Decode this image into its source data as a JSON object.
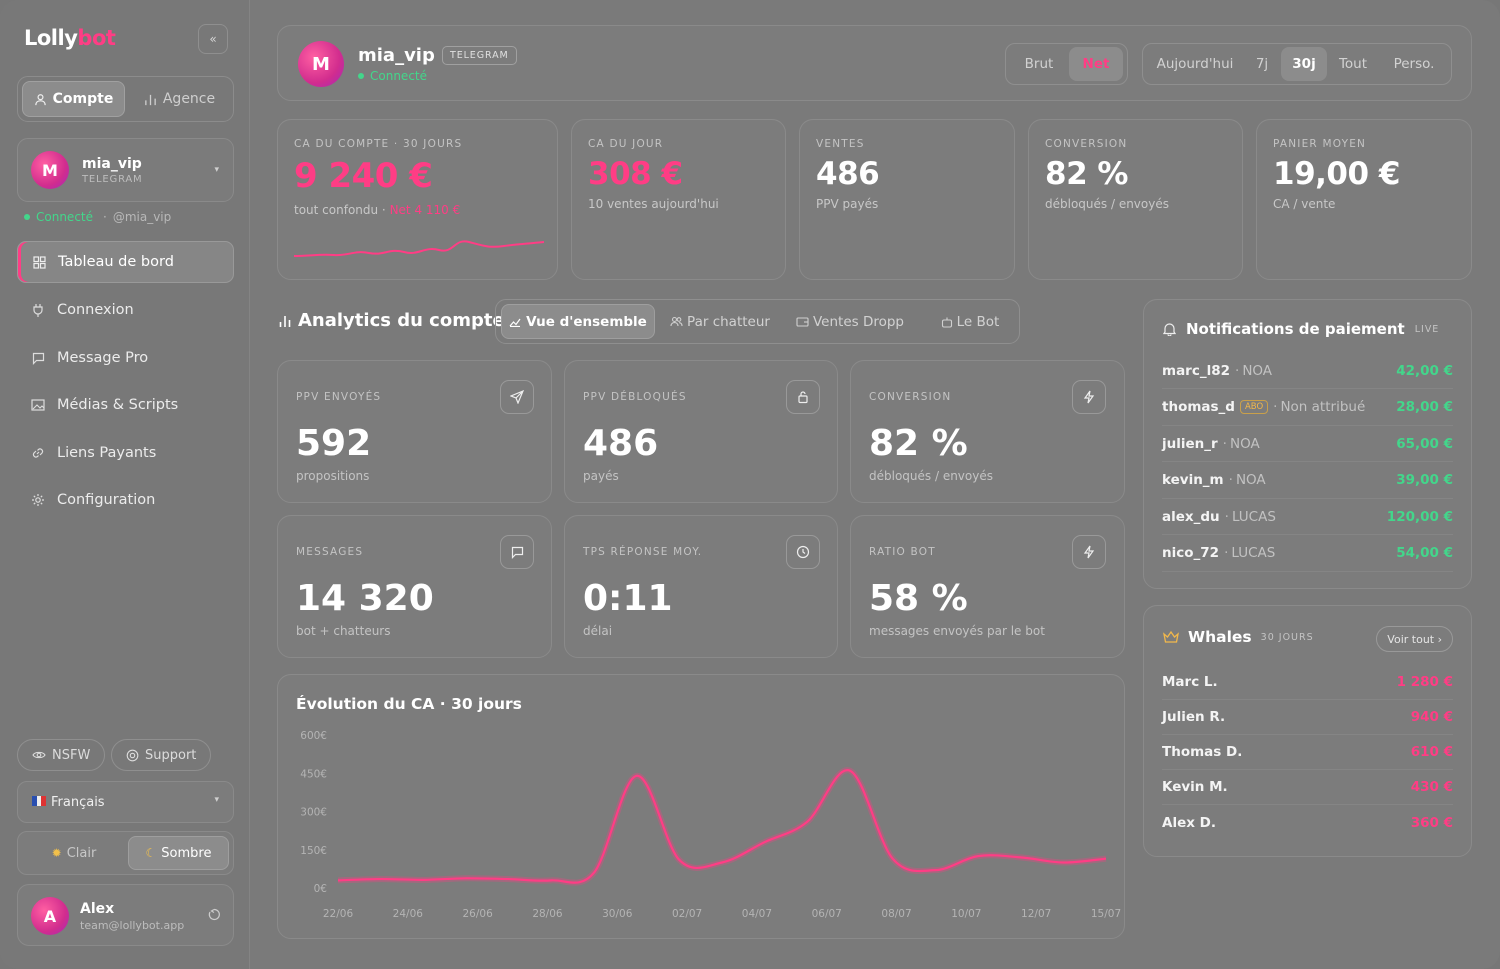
{
  "app": {
    "logo_part1": "Lolly",
    "logo_part2": "bot",
    "collapse_glyph": "«"
  },
  "sidebar": {
    "account_tab": "Compte",
    "agency_tab": "Agence",
    "profile": {
      "initial": "M",
      "name": "mia_vip",
      "platform": "TELEGRAM",
      "status": "Connecté",
      "handle": "@mia_vip"
    },
    "nav": [
      {
        "label": "Tableau de bord",
        "icon": "grid-icon"
      },
      {
        "label": "Connexion",
        "icon": "plug-icon"
      },
      {
        "label": "Message Pro",
        "icon": "message-icon"
      },
      {
        "label": "Médias & Scripts",
        "icon": "image-icon"
      },
      {
        "label": "Liens Payants",
        "icon": "link-icon"
      },
      {
        "label": "Configuration",
        "icon": "gear-icon"
      }
    ],
    "nsfw_label": "NSFW",
    "support_label": "Support",
    "language": "Français",
    "theme_light": "Clair",
    "theme_dark": "Sombre",
    "user": {
      "initial": "A",
      "name": "Alex",
      "email": "team@lollybot.app"
    }
  },
  "header": {
    "initial": "M",
    "name": "mia_vip",
    "badge": "TELEGRAM",
    "status": "Connecté",
    "mode_tabs": [
      "Brut",
      "Net"
    ],
    "period_tabs": [
      "Aujourd'hui",
      "7j",
      "30j",
      "Tout",
      "Perso."
    ]
  },
  "kpis": [
    {
      "label": "CA DU COMPTE · 30 JOURS",
      "value": "9 240 €",
      "sub": "tout confondu · ",
      "sub_extra": "Net 4 110 €"
    },
    {
      "label": "CA DU JOUR",
      "value": "308 €",
      "sub": "10 ventes aujourd'hui"
    },
    {
      "label": "VENTES",
      "value": "486",
      "sub": "PPV payés"
    },
    {
      "label": "CONVERSION",
      "value": "82 %",
      "sub": "débloqués / envoyés"
    },
    {
      "label": "PANIER MOYEN",
      "value": "19,00 €",
      "sub": "CA / vente"
    }
  ],
  "analytics": {
    "title": "Analytics du compte",
    "tabs": [
      "Vue d'ensemble",
      "Par chatteur",
      "Ventes Dropp",
      "Le Bot"
    ]
  },
  "stats": [
    {
      "label": "PPV ENVOYÉS",
      "value": "592",
      "sub": "propositions",
      "icon": "send-icon"
    },
    {
      "label": "PPV DÉBLOQUÉS",
      "value": "486",
      "sub": "payés",
      "icon": "lock-icon"
    },
    {
      "label": "CONVERSION",
      "value": "82 %",
      "sub": "débloqués / envoyés",
      "icon": "bolt-icon"
    },
    {
      "label": "MESSAGES",
      "value": "14 320",
      "sub": "bot + chatteurs",
      "icon": "chat-icon"
    },
    {
      "label": "TPS RÉPONSE MOY.",
      "value": "0:11",
      "sub": "délai",
      "icon": "clock-icon"
    },
    {
      "label": "RATIO BOT",
      "value": "58 %",
      "sub": "messages envoyés par le bot",
      "icon": "bolt-icon"
    }
  ],
  "notifications": {
    "title": "Notifications de paiement",
    "live": "LIVE",
    "items": [
      {
        "user": "marc_l82",
        "agent": "NOA",
        "amount": "42,00 €"
      },
      {
        "user": "thomas_d",
        "tag": "ABO",
        "agent": "Non attribué",
        "amount": "28,00 €"
      },
      {
        "user": "julien_r",
        "agent": "NOA",
        "amount": "65,00 €"
      },
      {
        "user": "kevin_m",
        "agent": "NOA",
        "amount": "39,00 €"
      },
      {
        "user": "alex_du",
        "agent": "LUCAS",
        "amount": "120,00 €"
      },
      {
        "user": "nico_72",
        "agent": "LUCAS",
        "amount": "54,00 €"
      }
    ]
  },
  "whales": {
    "title": "Whales",
    "period": "30 JOURS",
    "see_all": "Voir tout ›",
    "items": [
      {
        "name": "Marc L.",
        "amount": "1 280 €"
      },
      {
        "name": "Julien R.",
        "amount": "940 €"
      },
      {
        "name": "Thomas D.",
        "amount": "610 €"
      },
      {
        "name": "Kevin M.",
        "amount": "430 €"
      },
      {
        "name": "Alex D.",
        "amount": "360 €"
      }
    ]
  },
  "colors": {
    "accent": "#ff3d85",
    "positive": "#43d68b",
    "whale_icon": "#f2b84b"
  },
  "chart_data": {
    "type": "line",
    "title": "Évolution du CA · 30 jours",
    "y_ticks": [
      "0€",
      "150€",
      "300€",
      "450€",
      "600€"
    ],
    "ylim": [
      0,
      600
    ],
    "x_labels": [
      "22/06",
      "24/06",
      "26/06",
      "28/06",
      "30/06",
      "02/07",
      "04/07",
      "06/07",
      "08/07",
      "10/07",
      "12/07",
      "15/07"
    ],
    "series": [
      {
        "values": [
          30,
          35,
          32,
          38,
          35,
          30,
          60,
          440,
          110,
          100,
          180,
          260,
          460,
          115,
          70,
          125,
          120,
          100,
          115
        ]
      }
    ],
    "grid": false,
    "legend": "none"
  }
}
